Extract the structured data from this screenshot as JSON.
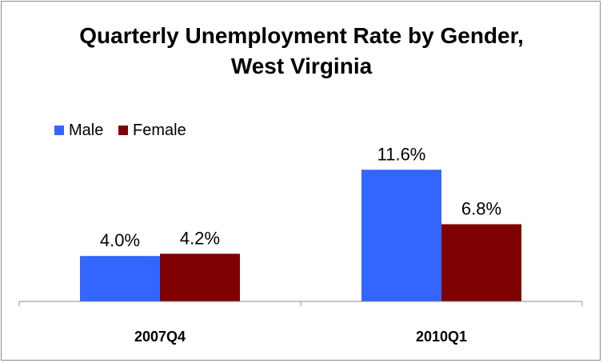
{
  "chart_data": {
    "type": "bar",
    "title": "Quarterly Unemployment Rate by Gender,",
    "subtitle": "West Virginia",
    "categories": [
      "2007Q4",
      "2010Q1"
    ],
    "series": [
      {
        "name": "Male",
        "color": "#3366ff",
        "values": [
          4.0,
          11.6
        ],
        "labels": [
          "4.0%",
          "11.6%"
        ]
      },
      {
        "name": "Female",
        "color": "#7f0000",
        "values": [
          4.2,
          6.8
        ],
        "labels": [
          "4.2%",
          "6.8%"
        ]
      }
    ],
    "xlabel": "",
    "ylabel": "",
    "ylim": [
      0,
      14
    ],
    "grid": false,
    "legend_position": "top-left"
  }
}
